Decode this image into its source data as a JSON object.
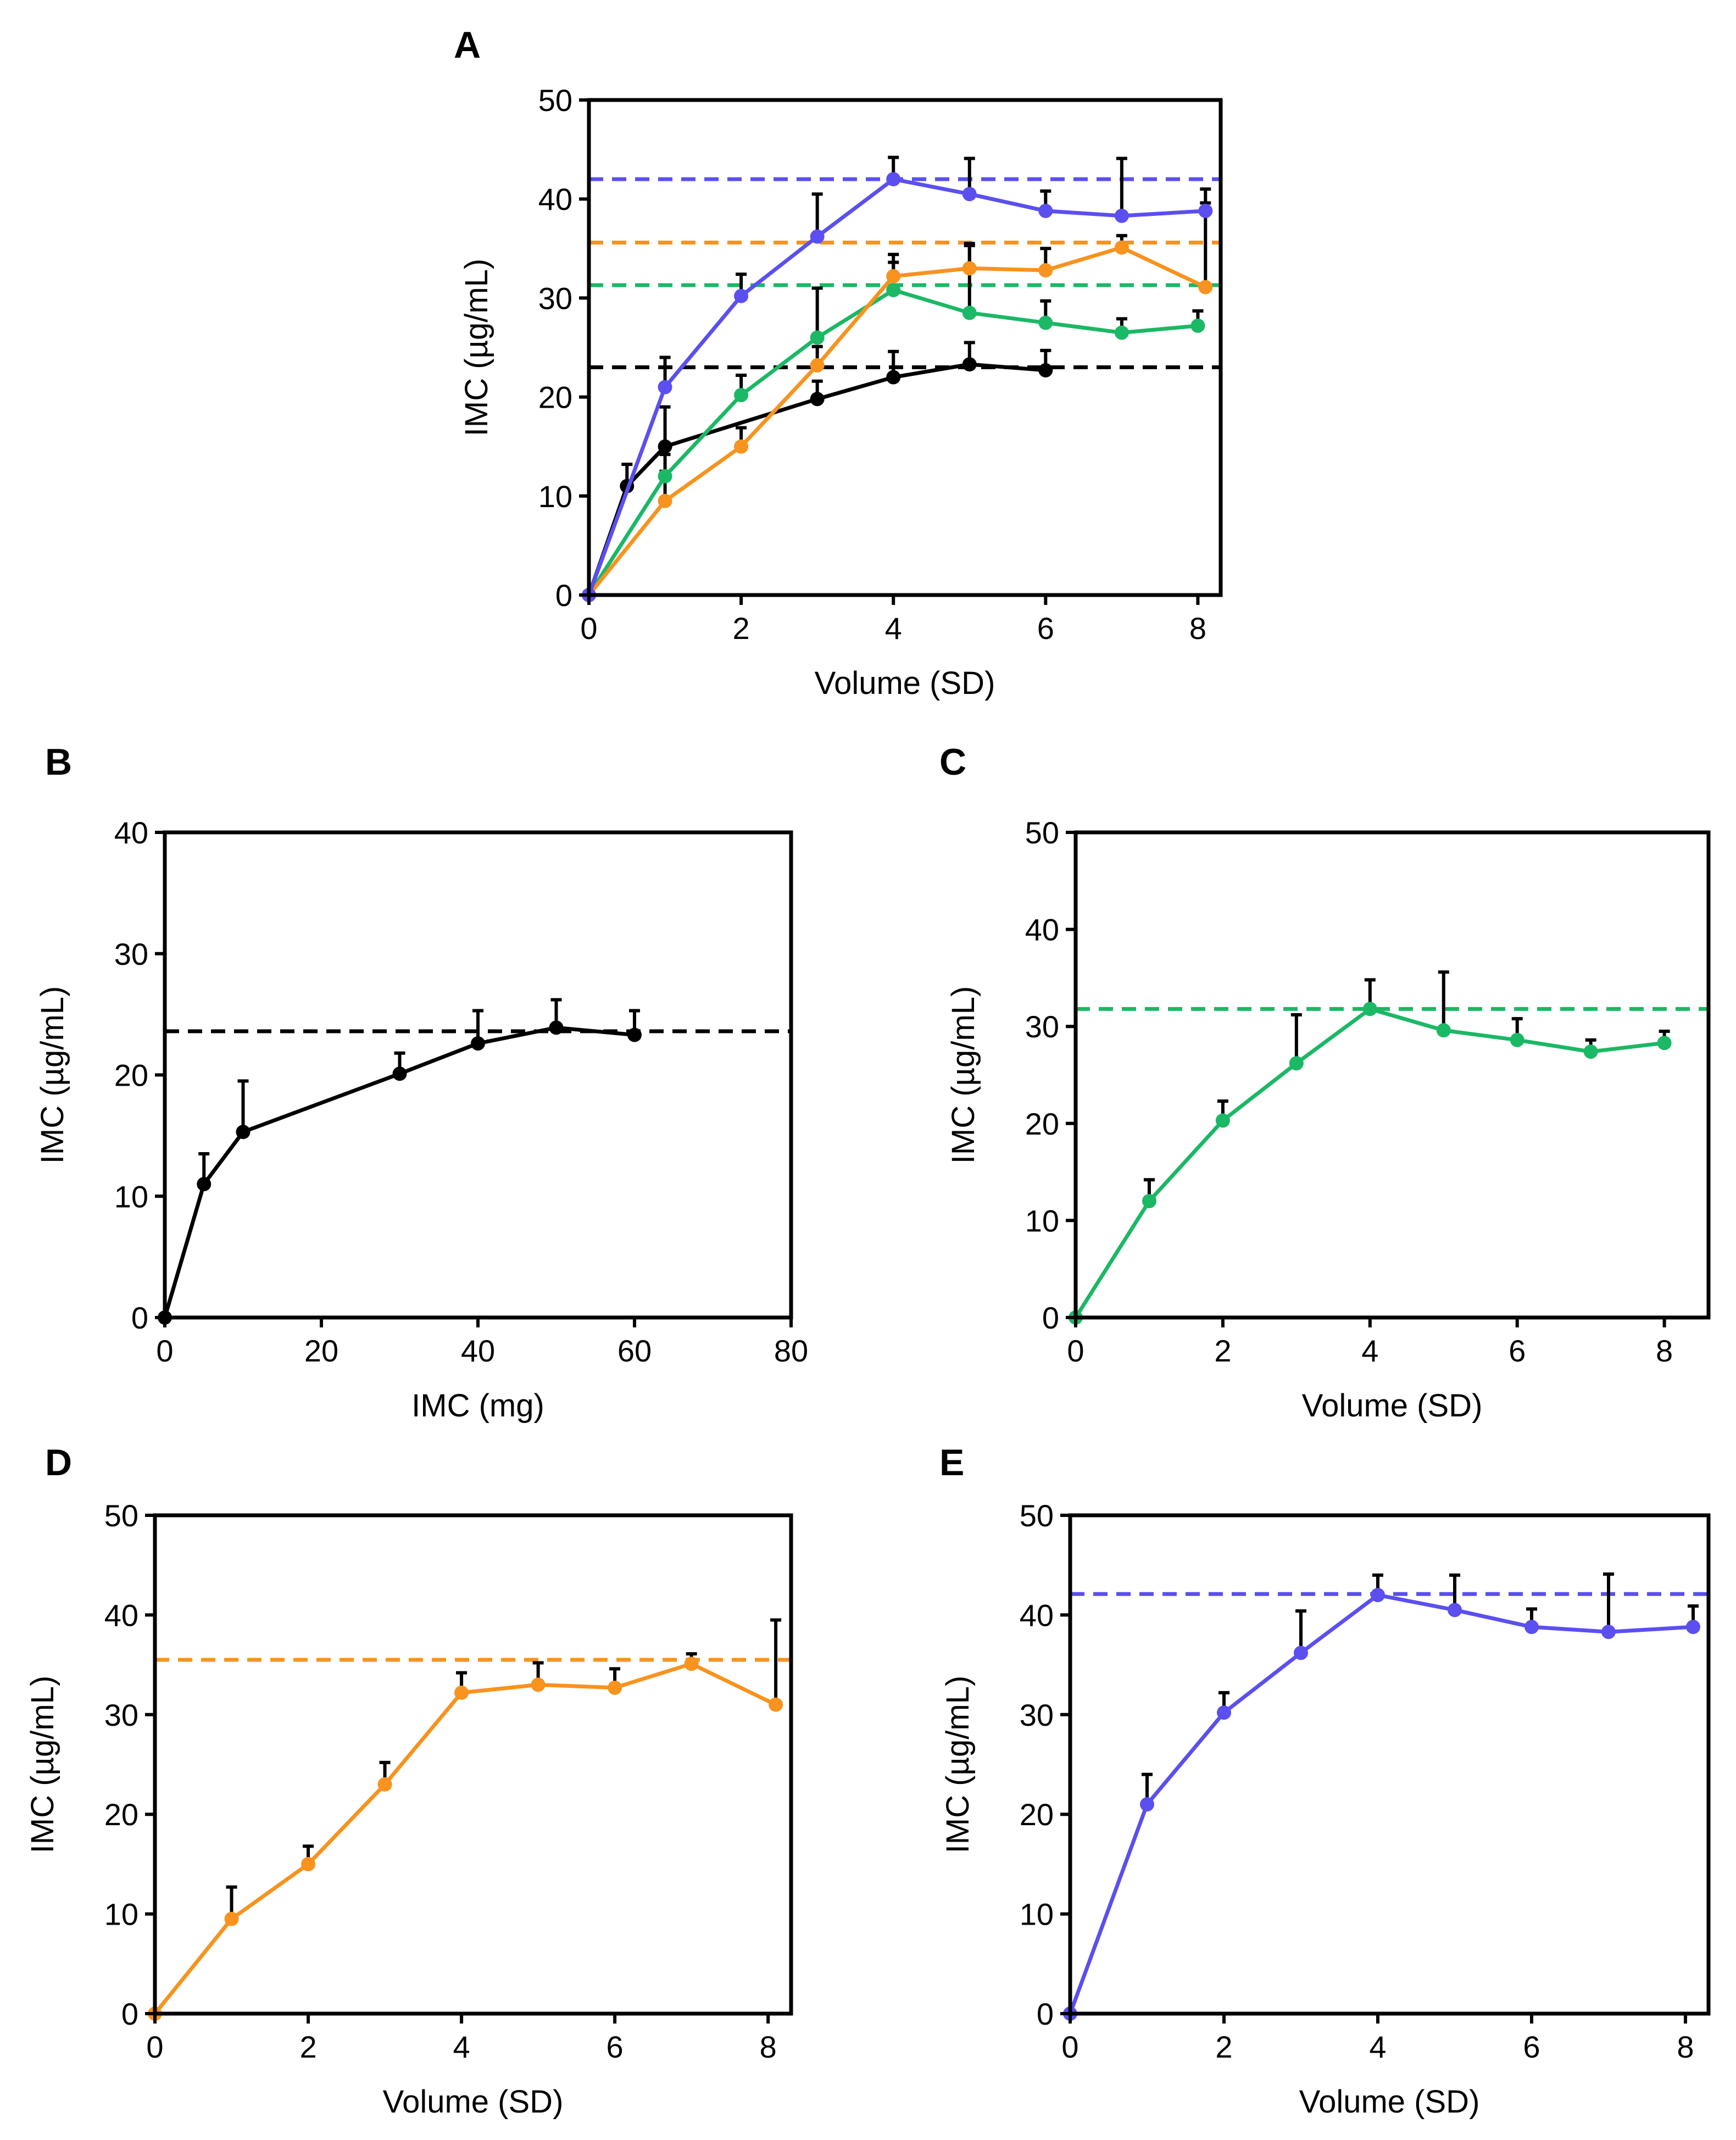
{
  "colors": {
    "black": "#000000",
    "green": "#1bb865",
    "orange": "#f7931e",
    "blue": "#5b4ff0"
  },
  "chart_data": [
    {
      "panel": "A",
      "type": "line",
      "xlabel": "Volume (SD)",
      "ylabel": "IMC (µg/mL)",
      "xlim": [
        0,
        8.3
      ],
      "ylim": [
        0,
        50
      ],
      "xticks": [
        0,
        2,
        4,
        6,
        8
      ],
      "yticks": [
        0,
        10,
        20,
        30,
        40,
        50
      ],
      "series": [
        {
          "name": "black",
          "color": "#000000",
          "x": [
            0,
            0.5,
            1,
            3,
            4,
            5,
            6
          ],
          "values": [
            0,
            11,
            15,
            19.8,
            22,
            23.3,
            22.7
          ],
          "errors": [
            0,
            2.2,
            4,
            1.8,
            2.6,
            2.2,
            2.0
          ],
          "reference": 23
        },
        {
          "name": "green",
          "color": "#1bb865",
          "x": [
            0,
            1,
            2,
            3,
            4,
            5,
            6,
            7,
            8
          ],
          "values": [
            0,
            12,
            20.2,
            26,
            30.8,
            28.5,
            27.5,
            26.5,
            27.2
          ],
          "errors": [
            0,
            2.2,
            2.0,
            5,
            2.8,
            7,
            2.2,
            1.4,
            1.5
          ],
          "reference": 31.3
        },
        {
          "name": "orange",
          "color": "#f7931e",
          "x": [
            0,
            1,
            2,
            3,
            4,
            5,
            6,
            7,
            8.1
          ],
          "values": [
            0,
            9.5,
            15,
            23.2,
            32.2,
            33,
            32.8,
            35.1,
            31.1
          ],
          "errors": [
            0,
            3,
            1.9,
            1.9,
            2.2,
            2.3,
            2.2,
            1.2,
            8.5
          ],
          "reference": 35.6
        },
        {
          "name": "blue",
          "color": "#5b4ff0",
          "x": [
            0,
            1,
            2,
            3,
            4,
            5,
            6,
            7,
            8.1
          ],
          "values": [
            0,
            21,
            30.2,
            36.2,
            42,
            40.5,
            38.8,
            38.3,
            38.8
          ],
          "errors": [
            0,
            3,
            2.2,
            4.3,
            2.2,
            3.6,
            2.0,
            5.8,
            2.2
          ],
          "reference": 42
        }
      ]
    },
    {
      "panel": "B",
      "type": "line",
      "xlabel": "IMC (mg)",
      "ylabel": "IMC (µg/mL)",
      "xlim": [
        0,
        80
      ],
      "ylim": [
        0,
        40
      ],
      "xticks": [
        0,
        20,
        40,
        60,
        80
      ],
      "yticks": [
        0,
        10,
        20,
        30,
        40
      ],
      "series": [
        {
          "name": "black",
          "color": "#000000",
          "x": [
            0,
            5,
            10,
            30,
            40,
            50,
            60
          ],
          "values": [
            0,
            11,
            15.3,
            20.1,
            22.6,
            23.9,
            23.3
          ],
          "errors": [
            0,
            2.5,
            4.2,
            1.7,
            2.7,
            2.3,
            2.0
          ],
          "reference": 23.6
        }
      ]
    },
    {
      "panel": "C",
      "type": "line",
      "xlabel": "Volume (SD)",
      "ylabel": "IMC (µg/mL)",
      "xlim": [
        0,
        8.6
      ],
      "ylim": [
        0,
        50
      ],
      "xticks": [
        0,
        2,
        4,
        6,
        8
      ],
      "yticks": [
        0,
        10,
        20,
        30,
        40,
        50
      ],
      "series": [
        {
          "name": "green",
          "color": "#1bb865",
          "x": [
            0,
            1,
            2,
            3,
            4,
            5,
            6,
            7,
            8
          ],
          "values": [
            0,
            12,
            20.3,
            26.2,
            31.8,
            29.6,
            28.6,
            27.4,
            28.3
          ],
          "errors": [
            0,
            2.2,
            2,
            5,
            3,
            6,
            2.2,
            1.2,
            1.2
          ],
          "reference": 31.8
        }
      ]
    },
    {
      "panel": "D",
      "type": "line",
      "xlabel": "Volume (SD)",
      "ylabel": "IMC (µg/mL)",
      "xlim": [
        0,
        8.3
      ],
      "ylim": [
        0,
        50
      ],
      "xticks": [
        0,
        2,
        4,
        6,
        8
      ],
      "yticks": [
        0,
        10,
        20,
        30,
        40,
        50
      ],
      "series": [
        {
          "name": "orange",
          "color": "#f7931e",
          "x": [
            0,
            1,
            2,
            3,
            4,
            5,
            6,
            7,
            8.1
          ],
          "values": [
            0,
            9.5,
            15,
            23,
            32.2,
            33,
            32.7,
            35.1,
            31
          ],
          "errors": [
            0,
            3.2,
            1.8,
            2.2,
            2,
            2.2,
            1.9,
            1.0,
            8.5
          ],
          "reference": 35.5
        }
      ]
    },
    {
      "panel": "E",
      "type": "line",
      "xlabel": "Volume (SD)",
      "ylabel": "IMC (µg/mL)",
      "xlim": [
        0,
        8.3
      ],
      "ylim": [
        0,
        50
      ],
      "xticks": [
        0,
        2,
        4,
        6,
        8
      ],
      "yticks": [
        0,
        10,
        20,
        30,
        40,
        50
      ],
      "series": [
        {
          "name": "blue",
          "color": "#5b4ff0",
          "x": [
            0,
            1,
            2,
            3,
            4,
            5,
            6,
            7,
            8.1
          ],
          "values": [
            0,
            21,
            30.2,
            36.2,
            42,
            40.5,
            38.8,
            38.3,
            38.8
          ],
          "errors": [
            0,
            3,
            2,
            4.2,
            2,
            3.5,
            1.8,
            5.8,
            2.1
          ],
          "reference": 42.1
        }
      ]
    }
  ]
}
